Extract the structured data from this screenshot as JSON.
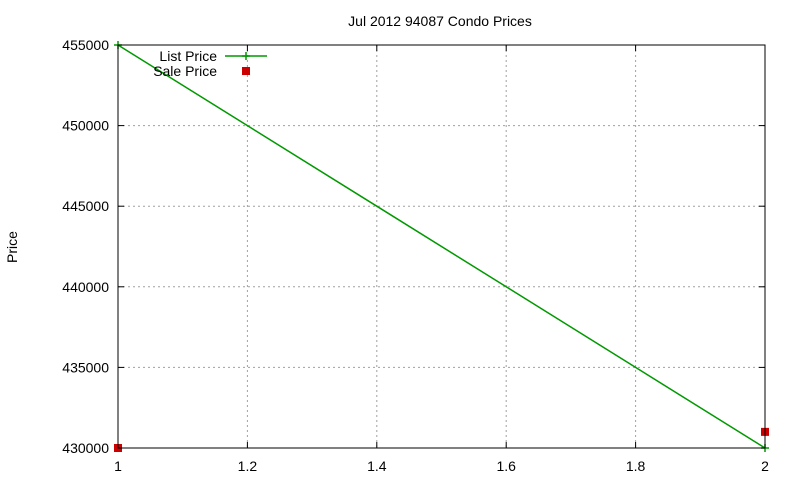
{
  "chart_data": {
    "type": "line",
    "title": "Jul 2012 94087 Condo Prices",
    "xlabel": "",
    "ylabel": "Price",
    "xlim": [
      1,
      2
    ],
    "ylim": [
      430000,
      455000
    ],
    "x_ticks": [
      "1",
      "1.2",
      "1.4",
      "1.6",
      "1.8",
      "2"
    ],
    "y_ticks": [
      "430000",
      "435000",
      "440000",
      "445000",
      "450000",
      "455000"
    ],
    "grid": true,
    "legend_position": "top-left",
    "series": [
      {
        "name": "List Price",
        "kind": "line",
        "marker": "plus",
        "color": "#009900",
        "points": [
          {
            "x": 1,
            "y": 455000
          },
          {
            "x": 2,
            "y": 430000
          }
        ]
      },
      {
        "name": "Sale Price",
        "kind": "points",
        "marker": "square",
        "color": "#cc0000",
        "points": [
          {
            "x": 1,
            "y": 430000
          },
          {
            "x": 2,
            "y": 431000
          }
        ]
      }
    ]
  }
}
